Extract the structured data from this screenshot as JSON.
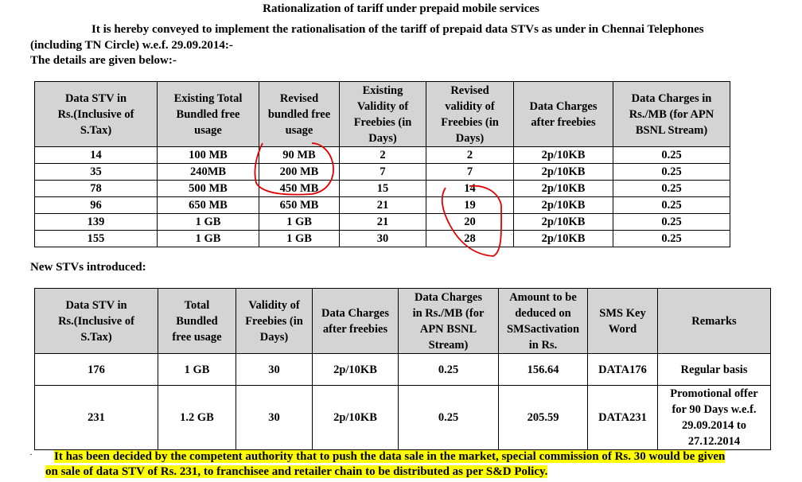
{
  "title": "Rationalization of tariff under prepaid mobile services",
  "intro": {
    "line1": "It is hereby conveyed to implement the rationalisation  of the tariff of  prepaid data STVs as under in Chennai Telephones",
    "line2": "(including TN Circle) w.e.f. 29.09.2014:-",
    "line3": "The details are given below:-"
  },
  "table1": {
    "headers": [
      [
        "Data STV in",
        "Rs.(Inclusive of",
        "S.Tax)"
      ],
      [
        "Existing Total",
        "Bundled free",
        "usage"
      ],
      [
        "Revised",
        "bundled free",
        "usage"
      ],
      [
        "Existing",
        "Validity of",
        "Freebies (in",
        "Days)"
      ],
      [
        "Revised",
        "validity of",
        "Freebies (in",
        "Days)"
      ],
      [
        "Data Charges",
        "after freebies"
      ],
      [
        "Data Charges in",
        "Rs./MB (for APN",
        "BSNL Stream)"
      ]
    ],
    "rows": [
      [
        "14",
        "100 MB",
        "90 MB",
        "2",
        "2",
        "2p/10KB",
        "0.25"
      ],
      [
        "35",
        "240MB",
        "200 MB",
        "7",
        "7",
        "2p/10KB",
        "0.25"
      ],
      [
        "78",
        "500 MB",
        "450 MB",
        "15",
        "14",
        "2p/10KB",
        "0.25"
      ],
      [
        "96",
        "650 MB",
        "650 MB",
        "21",
        "19",
        "2p/10KB",
        "0.25"
      ],
      [
        "139",
        "1 GB",
        "1 GB",
        "21",
        "20",
        "2p/10KB",
        "0.25"
      ],
      [
        "155",
        "1 GB",
        "1 GB",
        "30",
        "28",
        "2p/10KB",
        "0.25"
      ]
    ]
  },
  "new_stvs_label": "New STVs introduced:",
  "table2": {
    "headers": [
      [
        "Data STV in",
        "Rs.(Inclusive  of",
        "S.Tax)"
      ],
      [
        "Total",
        "Bundled",
        "free usage"
      ],
      [
        "Validity of",
        "Freebies (in",
        "Days)"
      ],
      [
        "Data Charges",
        "after freebies"
      ],
      [
        "Data Charges",
        "in Rs./MB (for",
        "APN BSNL",
        "Stream)"
      ],
      [
        "Amount to be",
        "deduced on",
        "SMSactivation",
        "in Rs."
      ],
      [
        "SMS Key",
        "Word"
      ],
      [
        "Remarks"
      ]
    ],
    "rows": [
      [
        "176",
        "1 GB",
        "30",
        "2p/10KB",
        "0.25",
        "156.64",
        "DATA176",
        [
          "Regular basis"
        ]
      ],
      [
        "231",
        "1.2 GB",
        "30",
        "2p/10KB",
        "0.25",
        "205.59",
        "DATA231",
        [
          "Promotional offer",
          "for 90 Days w.e.f.",
          "29.09.2014 to",
          "27.12.2014"
        ]
      ]
    ]
  },
  "footer": {
    "bullet": "·",
    "line1": "It has been decided by the competent authority that to push the data sale in the market, special commission of Rs. 30 would be given",
    "line2": "on sale of data STV of Rs. 231, to franchisee and retailer chain to be distributed as per S&D Policy."
  },
  "colors": {
    "header_bg": "#d4d4d4",
    "highlight": "#ffff00",
    "annotation": "#e00000"
  }
}
